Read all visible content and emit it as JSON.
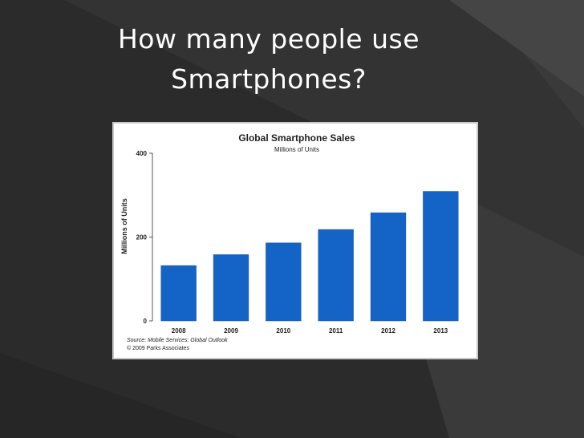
{
  "slide": {
    "title_line1": "How many people use",
    "title_line2": "Smartphones?"
  },
  "colors": {
    "background": "#2b2b2b",
    "shape_dark": "#3a3a3a",
    "shape_mid": "#454545",
    "bar": "#1464c8",
    "text": "#ffffff"
  },
  "chart_data": {
    "type": "bar",
    "title": "Global Smartphone Sales",
    "subtitle": "Millions of Units",
    "ylabel": "Millions of Units",
    "xlabel": "",
    "categories": [
      "2008",
      "2009",
      "2010",
      "2011",
      "2012",
      "2013"
    ],
    "values": [
      132,
      158,
      186,
      218,
      258,
      309
    ],
    "ylim": [
      0,
      400
    ],
    "yticks": [
      "0",
      "200",
      "400"
    ],
    "grid": false,
    "legend": "none",
    "source_note": "Source: Mobile Services: Global Outlook",
    "copyright_note": "© 2009 Parks Associates"
  }
}
